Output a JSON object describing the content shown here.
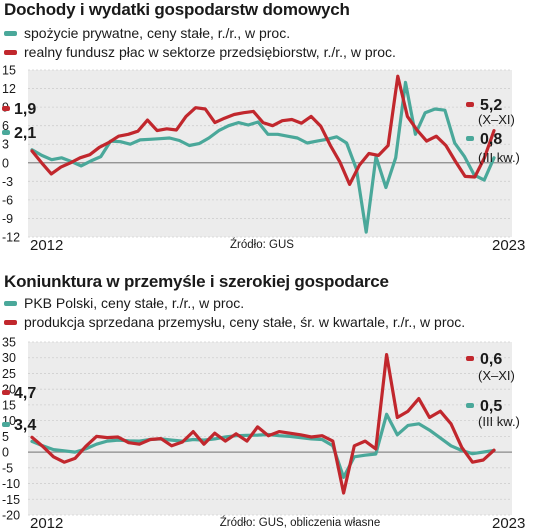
{
  "colors": {
    "teal": "#4aa89a",
    "red": "#c1272d",
    "grid": "#cfcfcf",
    "band": "#ececec"
  },
  "chart_data": [
    {
      "type": "line",
      "title": "Dochody i wydatki gospodarstw domowych",
      "source": "Źródło: GUS",
      "x_start_label": "2012",
      "x_end_label": "2023",
      "ylim": [
        -12,
        15
      ],
      "yticks": [
        15,
        12,
        9,
        6,
        3,
        0,
        -3,
        -6,
        -9,
        -12
      ],
      "grid": true,
      "series": [
        {
          "name": "spożycie prywatne, ceny stałe, r./r., w proc.",
          "color": "#4aa89a",
          "start_label": "2,1",
          "end_label": "0,8",
          "end_note": "(III kw.)",
          "values": [
            2.1,
            1.2,
            0.5,
            0.8,
            0.2,
            -0.5,
            0.3,
            1.0,
            3.5,
            3.4,
            3.0,
            3.7,
            3.8,
            3.9,
            4.0,
            3.6,
            2.8,
            3.1,
            4.0,
            5.2,
            6.0,
            6.5,
            6.1,
            6.6,
            4.6,
            4.6,
            4.3,
            4.0,
            3.2,
            3.5,
            3.8,
            4.2,
            3.2,
            -1.0,
            -11.2,
            1.0,
            -4.0,
            0.8,
            13.0,
            4.6,
            8.1,
            8.7,
            8.5,
            3.2,
            1.0,
            -2.0,
            -2.8,
            0.8
          ]
        },
        {
          "name": "realny fundusz płac w sektorze przedsiębiorstw, r./r., w proc.",
          "color": "#c1272d",
          "start_label": "1,9",
          "end_label": "5,2",
          "end_note": "(X–XI)",
          "values": [
            1.9,
            0.0,
            -1.8,
            -0.7,
            0.0,
            0.8,
            1.3,
            2.5,
            3.3,
            4.3,
            4.6,
            5.1,
            6.9,
            5.2,
            5.5,
            5.3,
            7.5,
            8.9,
            8.7,
            6.5,
            7.2,
            7.8,
            8.1,
            8.3,
            6.5,
            6.0,
            6.8,
            7.0,
            6.4,
            7.5,
            5.9,
            2.8,
            0.1,
            -3.5,
            -0.4,
            1.5,
            1.2,
            2.8,
            14.0,
            7.5,
            5.3,
            3.5,
            4.3,
            2.8,
            0.2,
            -2.2,
            -2.3,
            0.8,
            5.2
          ]
        }
      ]
    },
    {
      "type": "line",
      "title": "Koniunktura w przemyśle i szerokiej gospodarce",
      "source": "Źródło: GUS, obliczenia własne",
      "x_start_label": "2012",
      "x_end_label": "2023",
      "ylim": [
        -20,
        35
      ],
      "yticks": [
        35,
        30,
        25,
        20,
        15,
        10,
        5,
        0,
        -5,
        -10,
        -15,
        -20
      ],
      "grid": true,
      "series": [
        {
          "name": "PKB Polski, ceny stałe, r./r., w proc.",
          "color": "#4aa89a",
          "start_label": "3,4",
          "end_label": "0,5",
          "end_note": "(III kw.)",
          "values": [
            3.4,
            2.0,
            0.8,
            0.4,
            0.0,
            1.0,
            2.5,
            3.5,
            3.8,
            3.6,
            3.5,
            4.0,
            4.2,
            3.8,
            3.5,
            4.0,
            3.8,
            4.2,
            4.8,
            5.2,
            5.3,
            5.4,
            5.6,
            5.2,
            5.0,
            4.6,
            4.2,
            4.0,
            2.0,
            -8.0,
            -1.5,
            -1.0,
            -0.6,
            12.0,
            5.5,
            8.5,
            9.0,
            7.0,
            4.5,
            2.0,
            0.5,
            -0.5,
            0.0,
            0.5
          ]
        },
        {
          "name": "produkcja sprzedana przemysłu, ceny stałe, śr. w kwartale, r./r., w proc.",
          "color": "#c1272d",
          "start_label": "4,7",
          "end_label": "0,6",
          "end_note": "(X–XI)",
          "values": [
            4.7,
            1.8,
            -1.5,
            -3.2,
            -2.0,
            1.8,
            5.0,
            4.6,
            4.8,
            3.0,
            2.5,
            4.0,
            4.3,
            2.0,
            3.2,
            6.5,
            2.5,
            6.0,
            3.5,
            5.8,
            3.5,
            8.0,
            5.2,
            6.5,
            6.0,
            5.5,
            4.8,
            5.2,
            3.5,
            -13.0,
            2.0,
            3.5,
            1.0,
            31.0,
            11.0,
            13.0,
            17.0,
            11.0,
            13.0,
            9.0,
            1.5,
            -3.2,
            -2.5,
            0.6
          ]
        }
      ]
    }
  ]
}
